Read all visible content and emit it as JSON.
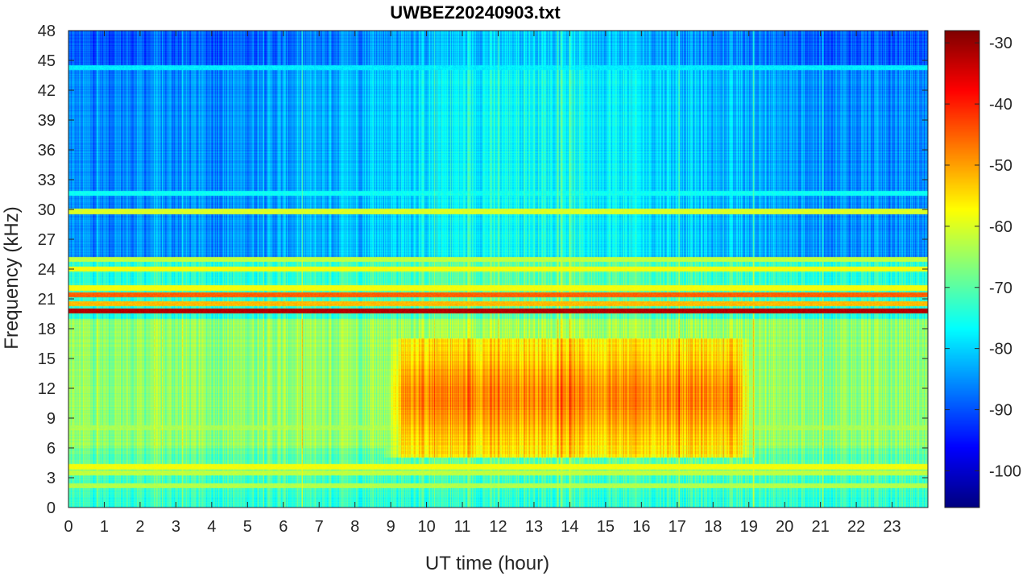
{
  "chart_data": {
    "type": "heatmap",
    "title": "UWBEZ20240903.txt",
    "xlabel": "UT time (hour)",
    "ylabel": "Frequency (kHz)",
    "xlim": [
      0,
      24
    ],
    "ylim": [
      0,
      48
    ],
    "x_ticks": [
      "0",
      "1",
      "2",
      "3",
      "4",
      "5",
      "6",
      "7",
      "8",
      "9",
      "10",
      "11",
      "12",
      "13",
      "14",
      "15",
      "16",
      "17",
      "18",
      "19",
      "20",
      "21",
      "22",
      "23"
    ],
    "y_ticks": [
      "0",
      "3",
      "6",
      "9",
      "12",
      "15",
      "18",
      "21",
      "24",
      "27",
      "30",
      "33",
      "36",
      "39",
      "42",
      "45",
      "48"
    ],
    "colorbar": {
      "colormap": "jet",
      "clim": [
        -106,
        -28
      ],
      "ticks": [
        "-100",
        "-90",
        "-80",
        "-70",
        "-60",
        "-50",
        "-40",
        "-30"
      ]
    },
    "features": {
      "background_high_freq_dB": -86,
      "background_low_freq_dB": -66,
      "daytime_hiss": {
        "t_start": 8.8,
        "t_end": 19.2,
        "f_low": 6,
        "f_high": 16,
        "peak_dB": -52
      },
      "narrowband_lines": [
        {
          "freq_khz": 19.8,
          "level_dB": -32
        },
        {
          "freq_khz": 21.4,
          "level_dB": -45
        },
        {
          "freq_khz": 20.5,
          "level_dB": -52
        },
        {
          "freq_khz": 22.1,
          "level_dB": -58
        },
        {
          "freq_khz": 24.0,
          "level_dB": -58
        },
        {
          "freq_khz": 25.0,
          "level_dB": -62
        },
        {
          "freq_khz": 4.1,
          "level_dB": -58
        },
        {
          "freq_khz": 3.5,
          "level_dB": -62
        },
        {
          "freq_khz": 2.2,
          "level_dB": -63
        },
        {
          "freq_khz": 8.0,
          "level_dB": -64
        },
        {
          "freq_khz": 44.3,
          "level_dB": -78
        },
        {
          "freq_khz": 31.6,
          "level_dB": -76
        },
        {
          "freq_khz": 29.8,
          "level_dB": -60
        }
      ]
    }
  }
}
